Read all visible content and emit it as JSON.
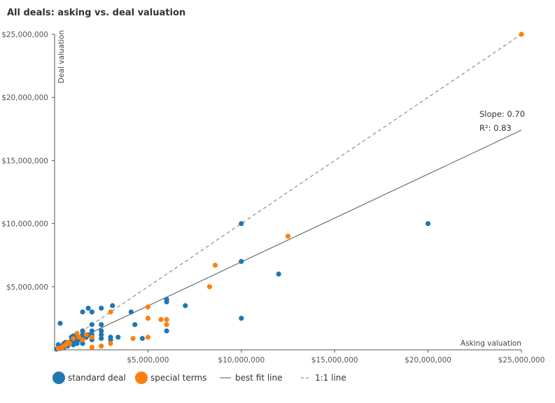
{
  "chart_data": {
    "type": "scatter",
    "title": "All deals: asking vs. deal valuation",
    "xlabel": "Asking valuation",
    "ylabel": "Deal valuation",
    "xlim": [
      0,
      25000000
    ],
    "ylim": [
      0,
      25000000
    ],
    "x_ticks": [
      5000000,
      10000000,
      15000000,
      20000000,
      25000000
    ],
    "y_ticks": [
      5000000,
      10000000,
      15000000,
      20000000,
      25000000
    ],
    "x_tick_labels": [
      "$5,000,000",
      "$10,000,000",
      "$15,000,000",
      "$20,000,000",
      "$25,000,000"
    ],
    "y_tick_labels": [
      "$5,000,000",
      "$10,000,000",
      "$15,000,000",
      "$20,000,000",
      "$25,000,000"
    ],
    "grid": false,
    "series": [
      {
        "name": "standard deal",
        "color": "#1f77b4",
        "points": [
          [
            20000000,
            10000000
          ],
          [
            10000000,
            10000000
          ],
          [
            10000000,
            7000000
          ],
          [
            10000000,
            2500000
          ],
          [
            12000000,
            6000000
          ],
          [
            7000000,
            3500000
          ],
          [
            6000000,
            4000000
          ],
          [
            6000000,
            3800000
          ],
          [
            6000000,
            1500000
          ],
          [
            4700000,
            900000
          ],
          [
            4300000,
            2000000
          ],
          [
            4100000,
            3000000
          ],
          [
            3400000,
            1000000
          ],
          [
            3000000,
            1000000
          ],
          [
            3000000,
            800000
          ],
          [
            3100000,
            3500000
          ],
          [
            2500000,
            3300000
          ],
          [
            2500000,
            2000000
          ],
          [
            2500000,
            1500000
          ],
          [
            2500000,
            1200000
          ],
          [
            2500000,
            900000
          ],
          [
            2000000,
            3000000
          ],
          [
            2000000,
            2000000
          ],
          [
            2000000,
            1500000
          ],
          [
            2000000,
            1200000
          ],
          [
            2000000,
            1000000
          ],
          [
            2000000,
            800000
          ],
          [
            1800000,
            3300000
          ],
          [
            1500000,
            3000000
          ],
          [
            1500000,
            1500000
          ],
          [
            1500000,
            1200000
          ],
          [
            1500000,
            1000000
          ],
          [
            1500000,
            500000
          ],
          [
            1800000,
            1200000
          ],
          [
            1700000,
            1000000
          ],
          [
            1300000,
            800000
          ],
          [
            1200000,
            1000000
          ],
          [
            1200000,
            500000
          ],
          [
            1000000,
            1100000
          ],
          [
            1000000,
            800000
          ],
          [
            1000000,
            600000
          ],
          [
            1000000,
            400000
          ],
          [
            900000,
            700000
          ],
          [
            800000,
            500000
          ],
          [
            700000,
            300000
          ],
          [
            600000,
            600000
          ],
          [
            500000,
            500000
          ],
          [
            500000,
            200000
          ],
          [
            400000,
            300000
          ],
          [
            300000,
            100000
          ],
          [
            200000,
            400000
          ],
          [
            100000,
            50000
          ],
          [
            300000,
            2100000
          ],
          [
            1100000,
            700000
          ],
          [
            900000,
            1000000
          ]
        ]
      },
      {
        "name": "special terms",
        "color": "#ff7f0e",
        "points": [
          [
            25000000,
            25000000
          ],
          [
            12500000,
            9000000
          ],
          [
            8600000,
            6700000
          ],
          [
            8300000,
            5000000
          ],
          [
            6000000,
            2400000
          ],
          [
            6000000,
            2000000
          ],
          [
            5700000,
            2400000
          ],
          [
            5000000,
            3400000
          ],
          [
            5000000,
            2500000
          ],
          [
            5000000,
            1000000
          ],
          [
            4200000,
            900000
          ],
          [
            3000000,
            3000000
          ],
          [
            3000000,
            500000
          ],
          [
            2500000,
            300000
          ],
          [
            2000000,
            200000
          ],
          [
            2000000,
            1000000
          ],
          [
            1500000,
            800000
          ],
          [
            1200000,
            1300000
          ],
          [
            1000000,
            900000
          ],
          [
            800000,
            500000
          ],
          [
            700000,
            600000
          ],
          [
            600000,
            400000
          ],
          [
            500000,
            300000
          ],
          [
            400000,
            200000
          ],
          [
            300000,
            150000
          ],
          [
            200000,
            100000
          ],
          [
            1300000,
            1000000
          ],
          [
            1700000,
            1200000
          ]
        ]
      }
    ],
    "fit_line": {
      "name": "best fit line",
      "slope": 0.7,
      "r2": 0.83,
      "x_end": 25000000,
      "y_end": 17400000
    },
    "identity_line": {
      "name": "1:1 line"
    },
    "annotations": {
      "slope_text": "Slope: 0.70",
      "r2_text": "R²: 0.83"
    },
    "legend": {
      "position": "bottom-left"
    }
  }
}
